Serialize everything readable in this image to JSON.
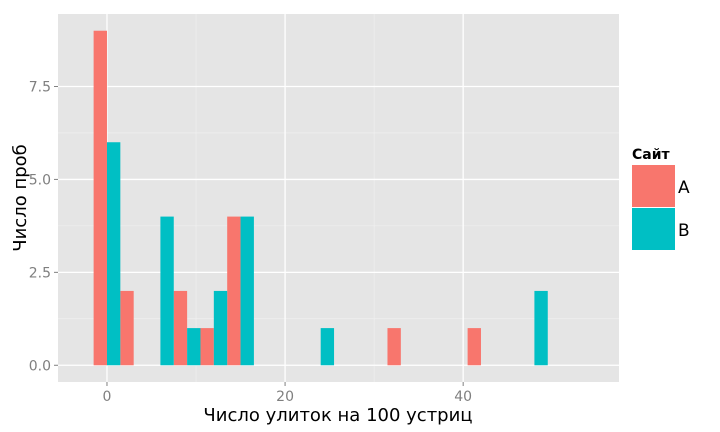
{
  "chart_data": {
    "type": "bar",
    "title": "",
    "xlabel": "Число улиток на 100 устриц",
    "ylabel": "Число проб",
    "xlim": [
      -5.5,
      57.5
    ],
    "ylim": [
      -0.45,
      9.45
    ],
    "x_ticks": [
      0,
      20,
      40
    ],
    "x_tick_labels": [
      "0",
      "20",
      "40"
    ],
    "y_ticks": [
      0,
      2.5,
      5,
      7.5
    ],
    "y_tick_labels": [
      "0.0",
      "2.5",
      "5.0",
      "7.5"
    ],
    "bin_width": 3,
    "grid": true,
    "legend": {
      "title": "Сайт",
      "position": "right"
    },
    "series": [
      {
        "name": "A",
        "color": "#F8766D",
        "bars": [
          {
            "x": 0,
            "y": 9
          },
          {
            "x": 3,
            "y": 2
          },
          {
            "x": 9,
            "y": 2
          },
          {
            "x": 12,
            "y": 1
          },
          {
            "x": 15,
            "y": 4
          },
          {
            "x": 33,
            "y": 1
          },
          {
            "x": 42,
            "y": 1
          }
        ]
      },
      {
        "name": "B",
        "color": "#00BFC4",
        "bars": [
          {
            "x": 0,
            "y": 6
          },
          {
            "x": 6,
            "y": 4
          },
          {
            "x": 9,
            "y": 1
          },
          {
            "x": 12,
            "y": 2
          },
          {
            "x": 15,
            "y": 4
          },
          {
            "x": 24,
            "y": 1
          },
          {
            "x": 48,
            "y": 2
          }
        ]
      }
    ]
  }
}
